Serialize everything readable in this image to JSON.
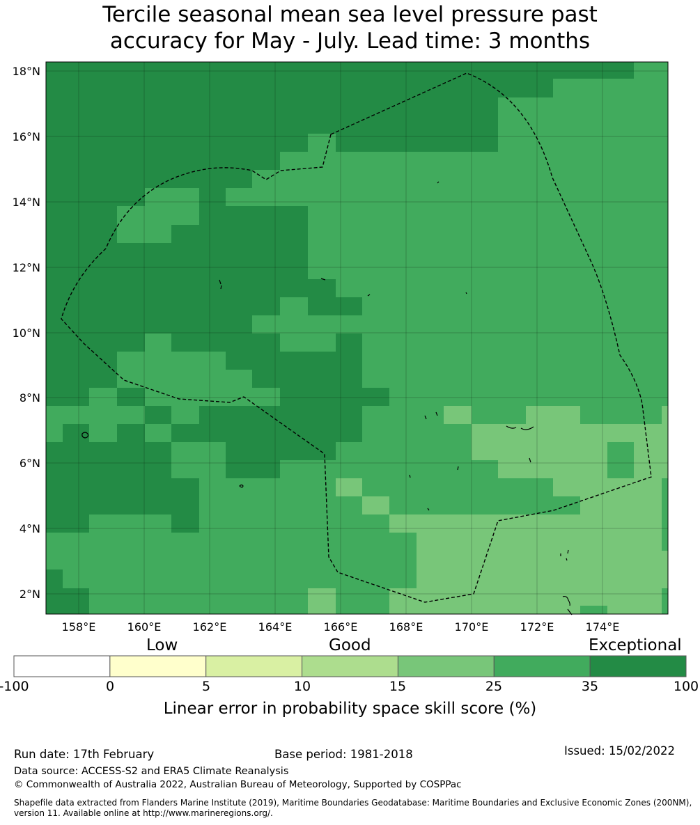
{
  "title_line1": "Tercile seasonal mean sea level pressure past",
  "title_line2": "accuracy for May - July. Lead time: 3 months",
  "map": {
    "lon_range": [
      157,
      176
    ],
    "lat_range": [
      1.4,
      18.3
    ],
    "lon_ticks": [
      "158°E",
      "160°E",
      "162°E",
      "164°E",
      "166°E",
      "168°E",
      "170°E",
      "172°E",
      "174°E"
    ],
    "lat_ticks": [
      "18°N",
      "16°N",
      "14°N",
      "12°N",
      "10°N",
      "8°N",
      "6°N",
      "4°N",
      "2°N"
    ],
    "skill_colors": {
      "35-100": "#238b45",
      "25-35": "#41ab5d",
      "15-25": "#78c679",
      "10-15": "#addd8e"
    },
    "grid_on": true,
    "boundary_style": "dashed black"
  },
  "colorbar": {
    "categories": [
      "Low",
      "Good",
      "Exceptional"
    ],
    "ticks": [
      "-100",
      "0",
      "5",
      "10",
      "15",
      "25",
      "35",
      "100"
    ],
    "colors": [
      "#ffffff",
      "#ffffcc",
      "#d9f0a3",
      "#addd8e",
      "#78c679",
      "#41ab5d",
      "#238b45"
    ],
    "label": "Linear error in probability space skill score (%)"
  },
  "footer": {
    "run_date": "Run date: 17th February",
    "base_period": "Base period: 1981-2018",
    "issued": "Issued: 15/02/2022",
    "data_source": "Data source: ACCESS-S2 and ERA5 Climate Reanalysis",
    "copyright": "© Commonwealth of Australia 2022, Australian Bureau of Meteorology, Supported by COSPPac",
    "shapefile": "Shapefile data extracted from Flanders Marine Institute (2019), Maritime Boundaries Geodatabase: Maritime Boundaries and Exclusive Economic Zones (200NM), version 11. Available online at http://www.marineregions.org/."
  }
}
